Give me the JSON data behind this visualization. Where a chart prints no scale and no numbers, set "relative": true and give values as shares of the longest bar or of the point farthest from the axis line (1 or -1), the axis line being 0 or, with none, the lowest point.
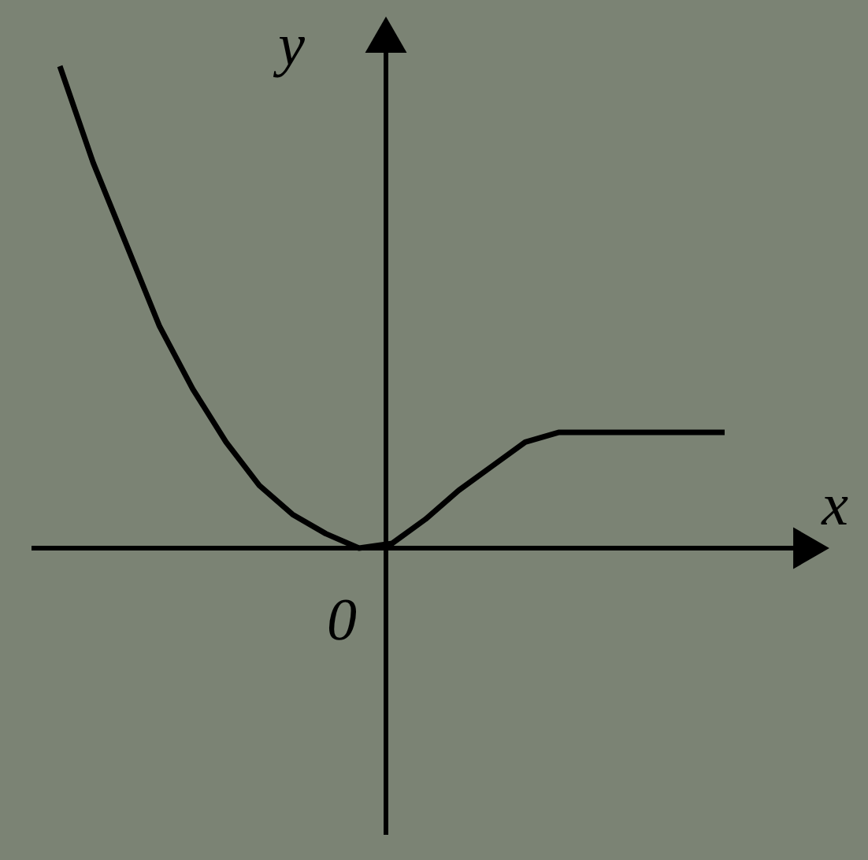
{
  "chart_data": {
    "type": "line",
    "relative": true,
    "xlabel": "x",
    "ylabel": "y",
    "annotations": [
      "0"
    ],
    "color": "#000000",
    "categories": [
      null,
      null,
      null,
      null,
      null,
      null,
      null,
      null,
      null,
      null,
      null,
      null,
      null,
      null,
      null,
      null,
      null,
      null,
      null,
      null,
      null
    ],
    "values": [
      1.0,
      0.8,
      0.63,
      0.46,
      0.33,
      0.22,
      0.13,
      0.07,
      0.03,
      0.0,
      0.01,
      0.06,
      0.12,
      0.17,
      0.22,
      0.24,
      0.24,
      0.24,
      0.24,
      0.24,
      0.24
    ]
  }
}
